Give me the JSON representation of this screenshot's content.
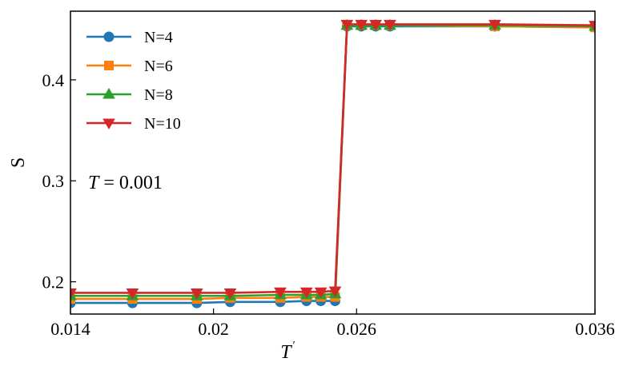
{
  "chart_data": {
    "type": "line",
    "xlabel": "T",
    "xlabel_superscript": "′",
    "ylabel": "S",
    "xlim": [
      0.014,
      0.036
    ],
    "ylim": [
      0.168,
      0.468
    ],
    "xticks": [
      0.014,
      0.02,
      0.026,
      0.036
    ],
    "xtick_labels": [
      "0.014",
      "0.02",
      "0.026",
      "0.036"
    ],
    "yticks": [
      0.2,
      0.3,
      0.4
    ],
    "ytick_labels": [
      "0.2",
      "0.3",
      "0.4"
    ],
    "grid": false,
    "legend_position": "top-left",
    "annotation": {
      "italic": "T",
      "text": " = 0.001"
    },
    "x": [
      0.014,
      0.0166,
      0.0193,
      0.0207,
      0.0228,
      0.0239,
      0.0245,
      0.0251,
      0.0256,
      0.0262,
      0.0268,
      0.0274,
      0.0318,
      0.036
    ],
    "series": [
      {
        "name": "N=4",
        "color": "#1f77b4",
        "marker": "circle",
        "values": [
          0.179,
          0.179,
          0.179,
          0.18,
          0.18,
          0.181,
          0.181,
          0.181,
          0.453,
          0.453,
          0.453,
          0.453,
          0.453,
          0.452
        ]
      },
      {
        "name": "N=6",
        "color": "#ff7f0e",
        "marker": "square",
        "values": [
          0.183,
          0.183,
          0.183,
          0.184,
          0.184,
          0.185,
          0.185,
          0.185,
          0.454,
          0.454,
          0.454,
          0.454,
          0.453,
          0.452
        ]
      },
      {
        "name": "N=8",
        "color": "#2ca02c",
        "marker": "triangle-up",
        "values": [
          0.186,
          0.186,
          0.186,
          0.186,
          0.187,
          0.187,
          0.187,
          0.188,
          0.454,
          0.454,
          0.454,
          0.454,
          0.454,
          0.453
        ]
      },
      {
        "name": "N=10",
        "color": "#d62728",
        "marker": "triangle-down",
        "values": [
          0.189,
          0.189,
          0.189,
          0.189,
          0.19,
          0.19,
          0.19,
          0.191,
          0.455,
          0.455,
          0.455,
          0.455,
          0.455,
          0.454
        ]
      }
    ]
  }
}
